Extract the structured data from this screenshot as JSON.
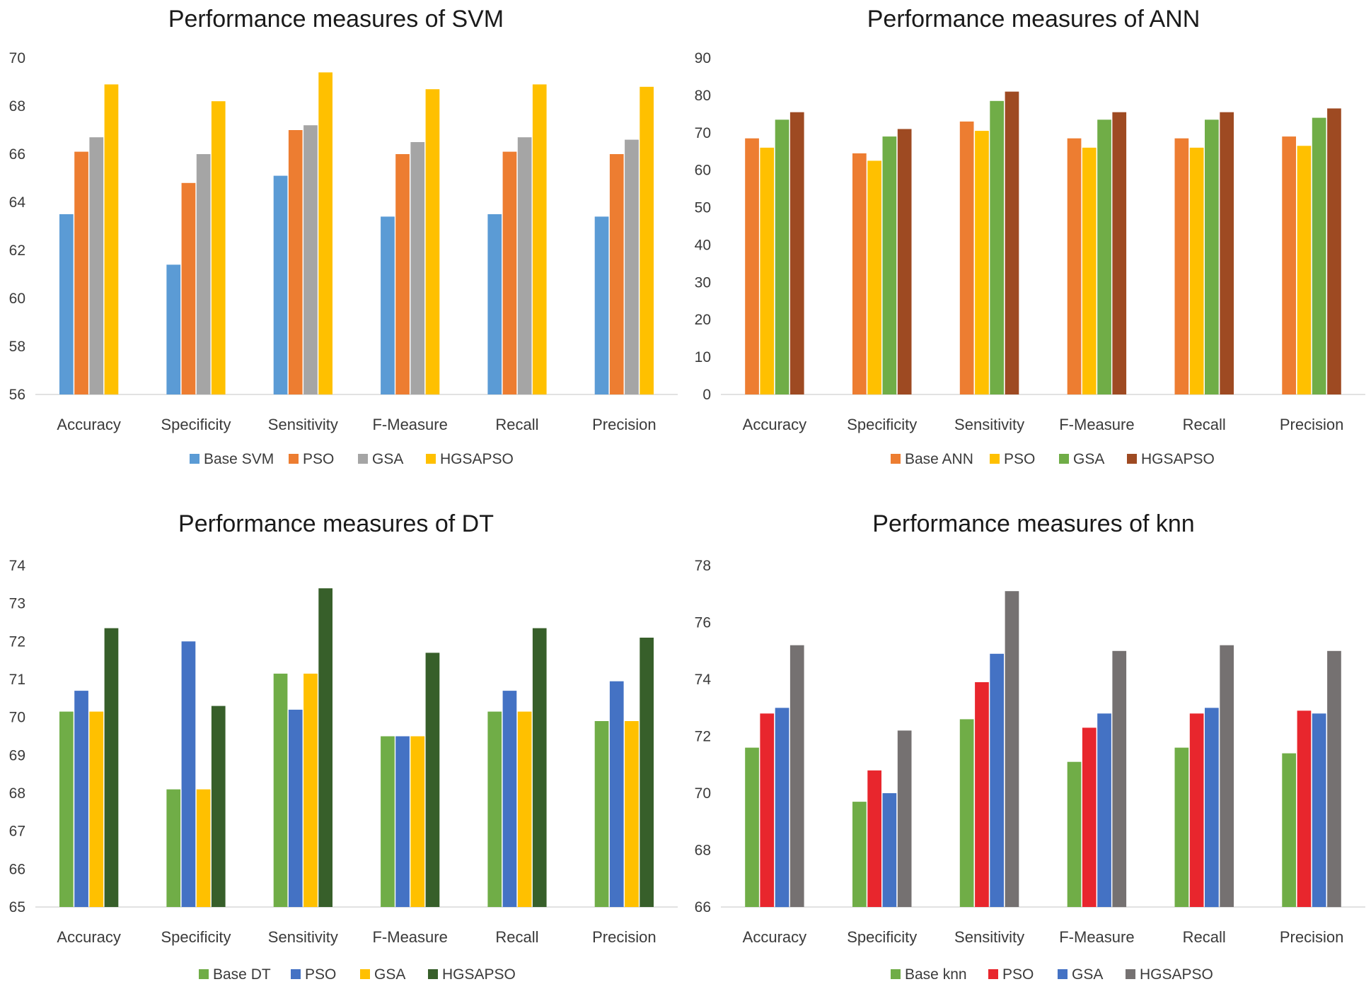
{
  "chart_data": [
    {
      "type": "bar",
      "title": "Performance measures of SVM",
      "categories": [
        "Accuracy",
        "Specificity",
        "Sensitivity",
        "F-Measure",
        "Recall",
        "Precision"
      ],
      "ylim": [
        56,
        70
      ],
      "yticks": [
        56,
        58,
        60,
        62,
        64,
        66,
        68,
        70
      ],
      "xlabel": "",
      "ylabel": "",
      "legend_position": "bottom",
      "series": [
        {
          "name": "Base SVM",
          "color": "#5b9bd5",
          "values": [
            63.5,
            61.4,
            65.1,
            63.4,
            63.5,
            63.4
          ]
        },
        {
          "name": "PSO",
          "color": "#ed7d31",
          "values": [
            66.1,
            64.8,
            67.0,
            66.0,
            66.1,
            66.0
          ]
        },
        {
          "name": "GSA",
          "color": "#a5a5a5",
          "values": [
            66.7,
            66.0,
            67.2,
            66.5,
            66.7,
            66.6
          ]
        },
        {
          "name": "HGSAPSO",
          "color": "#ffc000",
          "values": [
            68.9,
            68.2,
            69.4,
            68.7,
            68.9,
            68.8
          ]
        }
      ]
    },
    {
      "type": "bar",
      "title": "Performance measures of ANN",
      "categories": [
        "Accuracy",
        "Specificity",
        "Sensitivity",
        "F-Measure",
        "Recall",
        "Precision"
      ],
      "ylim": [
        0,
        90
      ],
      "yticks": [
        0,
        10,
        20,
        30,
        40,
        50,
        60,
        70,
        80,
        90
      ],
      "xlabel": "",
      "ylabel": "",
      "legend_position": "bottom",
      "series": [
        {
          "name": "Base ANN",
          "color": "#ed7d31",
          "values": [
            68.5,
            64.5,
            73.0,
            68.5,
            68.5,
            69.0
          ]
        },
        {
          "name": "PSO",
          "color": "#ffc000",
          "values": [
            66.0,
            62.5,
            70.5,
            66.0,
            66.0,
            66.5
          ]
        },
        {
          "name": "GSA",
          "color": "#70ad47",
          "values": [
            73.5,
            69.0,
            78.5,
            73.5,
            73.5,
            74.0
          ]
        },
        {
          "name": "HGSAPSO",
          "color": "#9e4a22",
          "values": [
            75.5,
            71.0,
            81.0,
            75.5,
            75.5,
            76.5
          ]
        }
      ]
    },
    {
      "type": "bar",
      "title": "Performance measures of DT",
      "categories": [
        "Accuracy",
        "Specificity",
        "Sensitivity",
        "F-Measure",
        "Recall",
        "Precision"
      ],
      "ylim": [
        65,
        74
      ],
      "yticks": [
        65,
        66,
        67,
        68,
        69,
        70,
        71,
        72,
        73,
        74
      ],
      "xlabel": "",
      "ylabel": "",
      "legend_position": "bottom",
      "series": [
        {
          "name": "Base DT",
          "color": "#70ad47",
          "values": [
            70.15,
            68.1,
            71.15,
            69.5,
            70.15,
            69.9
          ]
        },
        {
          "name": "PSO",
          "color": "#4472c4",
          "values": [
            70.7,
            72.0,
            70.2,
            69.5,
            70.7,
            70.95
          ]
        },
        {
          "name": "GSA",
          "color": "#ffc000",
          "values": [
            70.15,
            68.1,
            71.15,
            69.5,
            70.15,
            69.9
          ]
        },
        {
          "name": "HGSAPSO",
          "color": "#375f2a",
          "values": [
            72.35,
            70.3,
            73.4,
            71.7,
            72.35,
            72.1
          ]
        }
      ]
    },
    {
      "type": "bar",
      "title": "Performance measures of knn",
      "categories": [
        "Accuracy",
        "Specificity",
        "Sensitivity",
        "F-Measure",
        "Recall",
        "Precision"
      ],
      "ylim": [
        66,
        78
      ],
      "yticks": [
        66,
        68,
        70,
        72,
        74,
        76,
        78
      ],
      "xlabel": "",
      "ylabel": "",
      "legend_position": "bottom",
      "series": [
        {
          "name": "Base knn",
          "color": "#70ad47",
          "values": [
            71.6,
            69.7,
            72.6,
            71.1,
            71.6,
            71.4
          ]
        },
        {
          "name": "PSO",
          "color": "#e8262d",
          "values": [
            72.8,
            70.8,
            73.9,
            72.3,
            72.8,
            72.9
          ]
        },
        {
          "name": "GSA",
          "color": "#4472c4",
          "values": [
            73.0,
            70.0,
            74.9,
            72.8,
            73.0,
            72.8
          ]
        },
        {
          "name": "HGSAPSO",
          "color": "#757171",
          "values": [
            75.2,
            72.2,
            77.1,
            75.0,
            75.2,
            75.0
          ]
        }
      ]
    }
  ]
}
